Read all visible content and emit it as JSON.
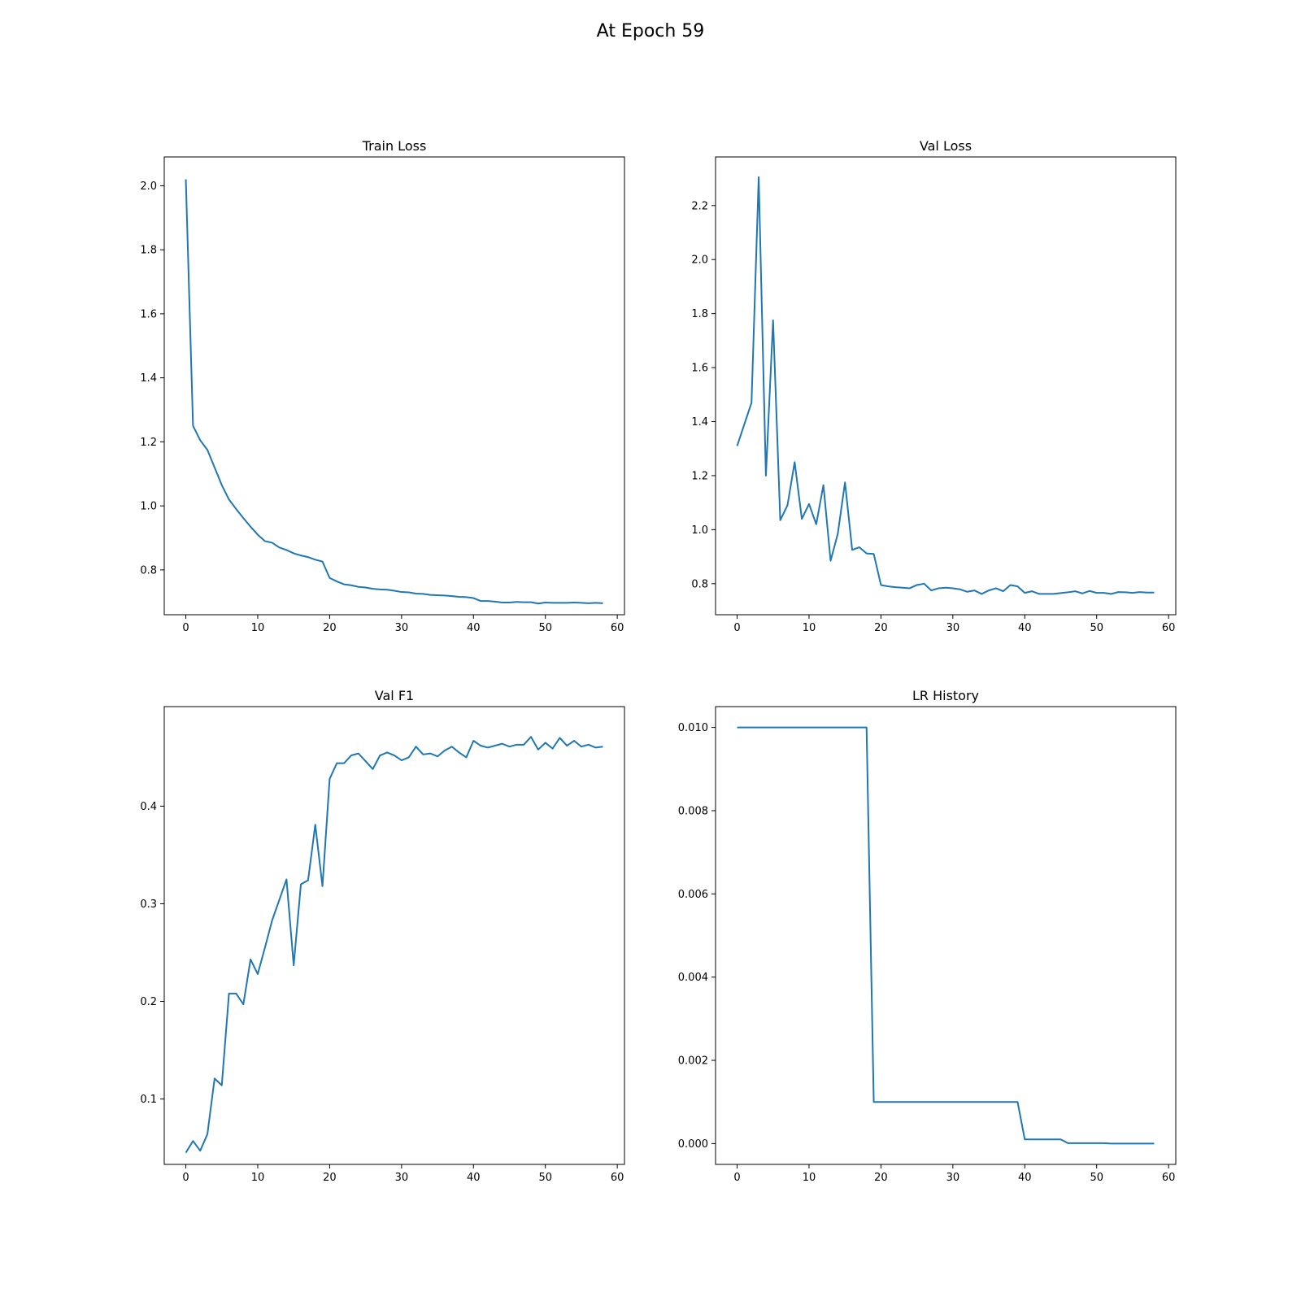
{
  "figure": {
    "suptitle": "At Epoch 59"
  },
  "style": {
    "line_color": "#1f77b4",
    "axis_color": "#000000",
    "background": "#ffffff"
  },
  "chart_data": [
    {
      "type": "line",
      "title": "Train Loss",
      "xlabel": "",
      "ylabel": "",
      "xlim": [
        -3,
        61
      ],
      "ylim": [
        0.66,
        2.09
      ],
      "xticks": [
        0,
        10,
        20,
        30,
        40,
        50,
        60
      ],
      "yticks": [
        0.8,
        1.0,
        1.2,
        1.4,
        1.6,
        1.8,
        2.0
      ],
      "ytick_labels": [
        "0.8",
        "1.0",
        "1.2",
        "1.4",
        "1.6",
        "1.8",
        "2.0"
      ],
      "grid": false,
      "x": [
        0,
        1,
        2,
        3,
        4,
        5,
        6,
        7,
        8,
        9,
        10,
        11,
        12,
        13,
        14,
        15,
        16,
        17,
        18,
        19,
        20,
        21,
        22,
        23,
        24,
        25,
        26,
        27,
        28,
        29,
        30,
        31,
        32,
        33,
        34,
        35,
        36,
        37,
        38,
        39,
        40,
        41,
        42,
        43,
        44,
        45,
        46,
        47,
        48,
        49,
        50,
        51,
        52,
        53,
        54,
        55,
        56,
        57,
        58
      ],
      "values": [
        2.02,
        1.25,
        1.205,
        1.175,
        1.12,
        1.065,
        1.02,
        0.99,
        0.962,
        0.935,
        0.91,
        0.89,
        0.885,
        0.87,
        0.862,
        0.852,
        0.845,
        0.84,
        0.832,
        0.826,
        0.775,
        0.764,
        0.755,
        0.752,
        0.747,
        0.745,
        0.741,
        0.739,
        0.738,
        0.735,
        0.731,
        0.73,
        0.726,
        0.725,
        0.722,
        0.721,
        0.72,
        0.718,
        0.716,
        0.715,
        0.712,
        0.703,
        0.703,
        0.701,
        0.698,
        0.698,
        0.7,
        0.699,
        0.699,
        0.695,
        0.698,
        0.697,
        0.697,
        0.697,
        0.698,
        0.697,
        0.696,
        0.697,
        0.696
      ]
    },
    {
      "type": "line",
      "title": "Val Loss",
      "xlabel": "",
      "ylabel": "",
      "xlim": [
        -3,
        61
      ],
      "ylim": [
        0.685,
        2.38
      ],
      "xticks": [
        0,
        10,
        20,
        30,
        40,
        50,
        60
      ],
      "yticks": [
        0.8,
        1.0,
        1.2,
        1.4,
        1.6,
        1.8,
        2.0,
        2.2
      ],
      "ytick_labels": [
        "0.8",
        "1.0",
        "1.2",
        "1.4",
        "1.6",
        "1.8",
        "2.0",
        "2.2"
      ],
      "grid": false,
      "x": [
        0,
        1,
        2,
        3,
        4,
        5,
        6,
        7,
        8,
        9,
        10,
        11,
        12,
        13,
        14,
        15,
        16,
        17,
        18,
        19,
        20,
        21,
        22,
        23,
        24,
        25,
        26,
        27,
        28,
        29,
        30,
        31,
        32,
        33,
        34,
        35,
        36,
        37,
        38,
        39,
        40,
        41,
        42,
        43,
        44,
        45,
        46,
        47,
        48,
        49,
        50,
        51,
        52,
        53,
        54,
        55,
        56,
        57,
        58
      ],
      "values": [
        1.31,
        1.39,
        1.47,
        2.305,
        1.2,
        1.775,
        1.035,
        1.09,
        1.25,
        1.04,
        1.095,
        1.02,
        1.165,
        0.885,
        0.985,
        1.175,
        0.925,
        0.935,
        0.912,
        0.91,
        0.795,
        0.79,
        0.787,
        0.785,
        0.783,
        0.795,
        0.8,
        0.775,
        0.783,
        0.785,
        0.783,
        0.779,
        0.77,
        0.775,
        0.762,
        0.775,
        0.783,
        0.772,
        0.795,
        0.79,
        0.766,
        0.772,
        0.762,
        0.762,
        0.762,
        0.765,
        0.768,
        0.772,
        0.764,
        0.773,
        0.766,
        0.766,
        0.762,
        0.769,
        0.768,
        0.766,
        0.769,
        0.767,
        0.767
      ]
    },
    {
      "type": "line",
      "title": "Val F1",
      "xlabel": "",
      "ylabel": "",
      "xlim": [
        -3,
        61
      ],
      "ylim": [
        0.033,
        0.502
      ],
      "xticks": [
        0,
        10,
        20,
        30,
        40,
        50,
        60
      ],
      "yticks": [
        0.1,
        0.2,
        0.3,
        0.4
      ],
      "ytick_labels": [
        "0.1",
        "0.2",
        "0.3",
        "0.4"
      ],
      "grid": false,
      "x": [
        0,
        1,
        2,
        3,
        4,
        5,
        6,
        7,
        8,
        9,
        10,
        11,
        12,
        13,
        14,
        15,
        16,
        17,
        18,
        19,
        20,
        21,
        22,
        23,
        24,
        25,
        26,
        27,
        28,
        29,
        30,
        31,
        32,
        33,
        34,
        35,
        36,
        37,
        38,
        39,
        40,
        41,
        42,
        43,
        44,
        45,
        46,
        47,
        48,
        49,
        50,
        51,
        52,
        53,
        54,
        55,
        56,
        57,
        58
      ],
      "values": [
        0.045,
        0.057,
        0.047,
        0.064,
        0.121,
        0.114,
        0.208,
        0.208,
        0.197,
        0.243,
        0.228,
        0.255,
        0.283,
        0.304,
        0.325,
        0.237,
        0.32,
        0.324,
        0.381,
        0.318,
        0.428,
        0.444,
        0.444,
        0.452,
        0.454,
        0.446,
        0.438,
        0.452,
        0.455,
        0.452,
        0.447,
        0.45,
        0.461,
        0.453,
        0.454,
        0.451,
        0.457,
        0.461,
        0.455,
        0.45,
        0.467,
        0.462,
        0.46,
        0.462,
        0.464,
        0.461,
        0.463,
        0.463,
        0.471,
        0.458,
        0.465,
        0.459,
        0.47,
        0.462,
        0.467,
        0.461,
        0.463,
        0.46,
        0.461
      ]
    },
    {
      "type": "line",
      "title": "LR History",
      "xlabel": "",
      "ylabel": "",
      "xlim": [
        -3,
        61
      ],
      "ylim": [
        -0.0005,
        0.0105
      ],
      "xticks": [
        0,
        10,
        20,
        30,
        40,
        50,
        60
      ],
      "yticks": [
        0.0,
        0.002,
        0.004,
        0.006,
        0.008,
        0.01
      ],
      "ytick_labels": [
        "0.000",
        "0.002",
        "0.004",
        "0.006",
        "0.008",
        "0.010"
      ],
      "grid": false,
      "x": [
        0,
        1,
        2,
        3,
        4,
        5,
        6,
        7,
        8,
        9,
        10,
        11,
        12,
        13,
        14,
        15,
        16,
        17,
        18,
        19,
        20,
        21,
        22,
        23,
        24,
        25,
        26,
        27,
        28,
        29,
        30,
        31,
        32,
        33,
        34,
        35,
        36,
        37,
        38,
        39,
        40,
        41,
        42,
        43,
        44,
        45,
        46,
        47,
        48,
        49,
        50,
        51,
        52,
        53,
        54,
        55,
        56,
        57,
        58
      ],
      "values": [
        0.01,
        0.01,
        0.01,
        0.01,
        0.01,
        0.01,
        0.01,
        0.01,
        0.01,
        0.01,
        0.01,
        0.01,
        0.01,
        0.01,
        0.01,
        0.01,
        0.01,
        0.01,
        0.01,
        0.001,
        0.001,
        0.001,
        0.001,
        0.001,
        0.001,
        0.001,
        0.001,
        0.001,
        0.001,
        0.001,
        0.001,
        0.001,
        0.001,
        0.001,
        0.001,
        0.001,
        0.001,
        0.001,
        0.001,
        0.001,
        0.0001,
        0.0001,
        0.0001,
        0.0001,
        0.0001,
        0.0001,
        1e-05,
        1e-05,
        1e-05,
        1e-05,
        1e-05,
        1e-05,
        1e-06,
        1e-06,
        1e-06,
        1e-06,
        1e-06,
        1e-06,
        1e-06
      ]
    }
  ]
}
